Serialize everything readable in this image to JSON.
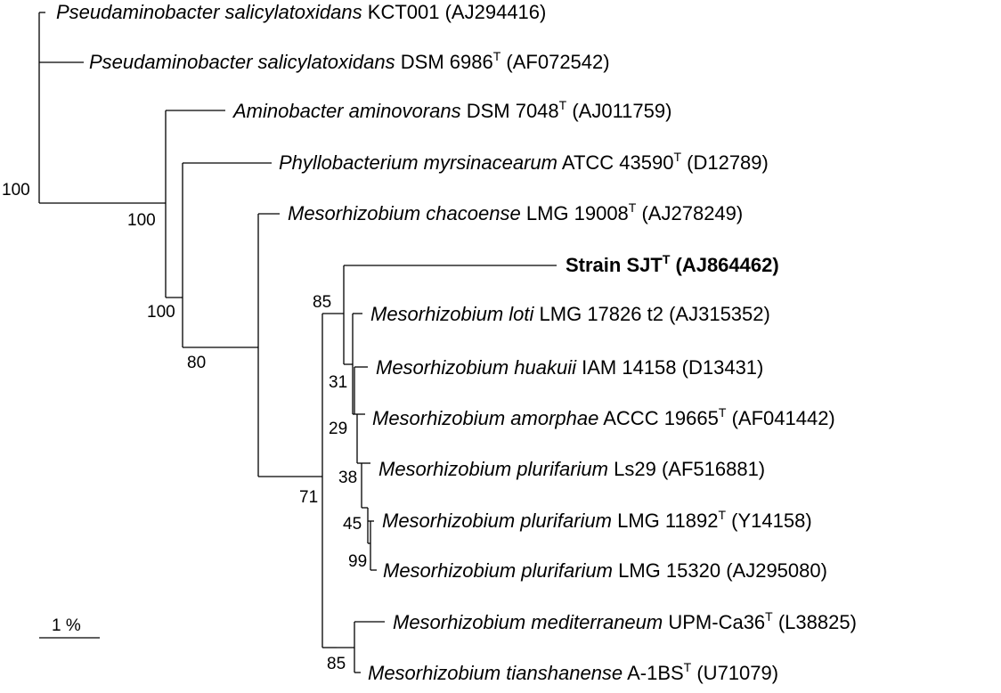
{
  "taxa": [
    {
      "id": "t1",
      "genus": "Pseudaminobacter salicylatoxidans",
      "strain": "KCT001",
      "sup": "",
      "acc": "(AJ294416)",
      "bold": false
    },
    {
      "id": "t2",
      "genus": "Pseudaminobacter salicylatoxidans",
      "strain": "DSM 6986",
      "sup": "T",
      "acc": "(AF072542)",
      "bold": false
    },
    {
      "id": "t3",
      "genus": "Aminobacter aminovorans",
      "strain": "DSM 7048",
      "sup": "T",
      "acc": "(AJ011759)",
      "bold": false
    },
    {
      "id": "t4",
      "genus": "Phyllobacterium myrsinacearum",
      "strain": "ATCC 43590",
      "sup": "T",
      "acc": "(D12789)",
      "bold": false
    },
    {
      "id": "t5",
      "genus": "Mesorhizobium chacoense",
      "strain": "LMG 19008",
      "sup": "T",
      "acc": "(AJ278249)",
      "bold": false
    },
    {
      "id": "t6",
      "genus": "",
      "strain": "Strain SJT",
      "sup": "T",
      "acc": "(AJ864462)",
      "bold": true
    },
    {
      "id": "t7",
      "genus": "Mesorhizobium loti",
      "strain": "LMG 17826 t2",
      "sup": "",
      "acc": "(AJ315352)",
      "bold": false
    },
    {
      "id": "t8",
      "genus": "Mesorhizobium huakuii",
      "strain": "IAM 14158",
      "sup": "",
      "acc": "(D13431)",
      "bold": false
    },
    {
      "id": "t9",
      "genus": "Mesorhizobium amorphae",
      "strain": "ACCC 19665",
      "sup": "T",
      "acc": "(AF041442)",
      "bold": false
    },
    {
      "id": "t10",
      "genus": "Mesorhizobium plurifarium",
      "strain": "Ls29",
      "sup": "",
      "acc": "(AF516881)",
      "bold": false
    },
    {
      "id": "t11",
      "genus": "Mesorhizobium plurifarium",
      "strain": "LMG 11892",
      "sup": "T",
      "acc": "(Y14158)",
      "bold": false
    },
    {
      "id": "t12",
      "genus": "Mesorhizobium plurifarium",
      "strain": "LMG 15320",
      "sup": "",
      "acc": "(AJ295080)",
      "bold": false
    },
    {
      "id": "t13",
      "genus": "Mesorhizobium mediterraneum",
      "strain": "UPM-Ca36",
      "sup": "T",
      "acc": "(L38825)",
      "bold": false
    },
    {
      "id": "t14",
      "genus": "Mesorhizobium tianshanense",
      "strain": "A-1BS",
      "sup": "T",
      "acc": "(U71079)",
      "bold": false
    }
  ],
  "bootstrap": [
    {
      "id": "b_root",
      "value": "100"
    },
    {
      "id": "b_amino",
      "value": "100"
    },
    {
      "id": "b_phyllo",
      "value": "100"
    },
    {
      "id": "b_meso",
      "value": "80"
    },
    {
      "id": "b_sjt",
      "value": "85"
    },
    {
      "id": "b_huakuii",
      "value": "31"
    },
    {
      "id": "b_amorphae",
      "value": "29"
    },
    {
      "id": "b_ls29",
      "value": "38"
    },
    {
      "id": "b_plur1",
      "value": "45"
    },
    {
      "id": "b_plur2",
      "value": "99"
    },
    {
      "id": "b_inner",
      "value": "71"
    },
    {
      "id": "b_medit",
      "value": "85"
    }
  ],
  "scale_bar": {
    "label": "1 %"
  }
}
